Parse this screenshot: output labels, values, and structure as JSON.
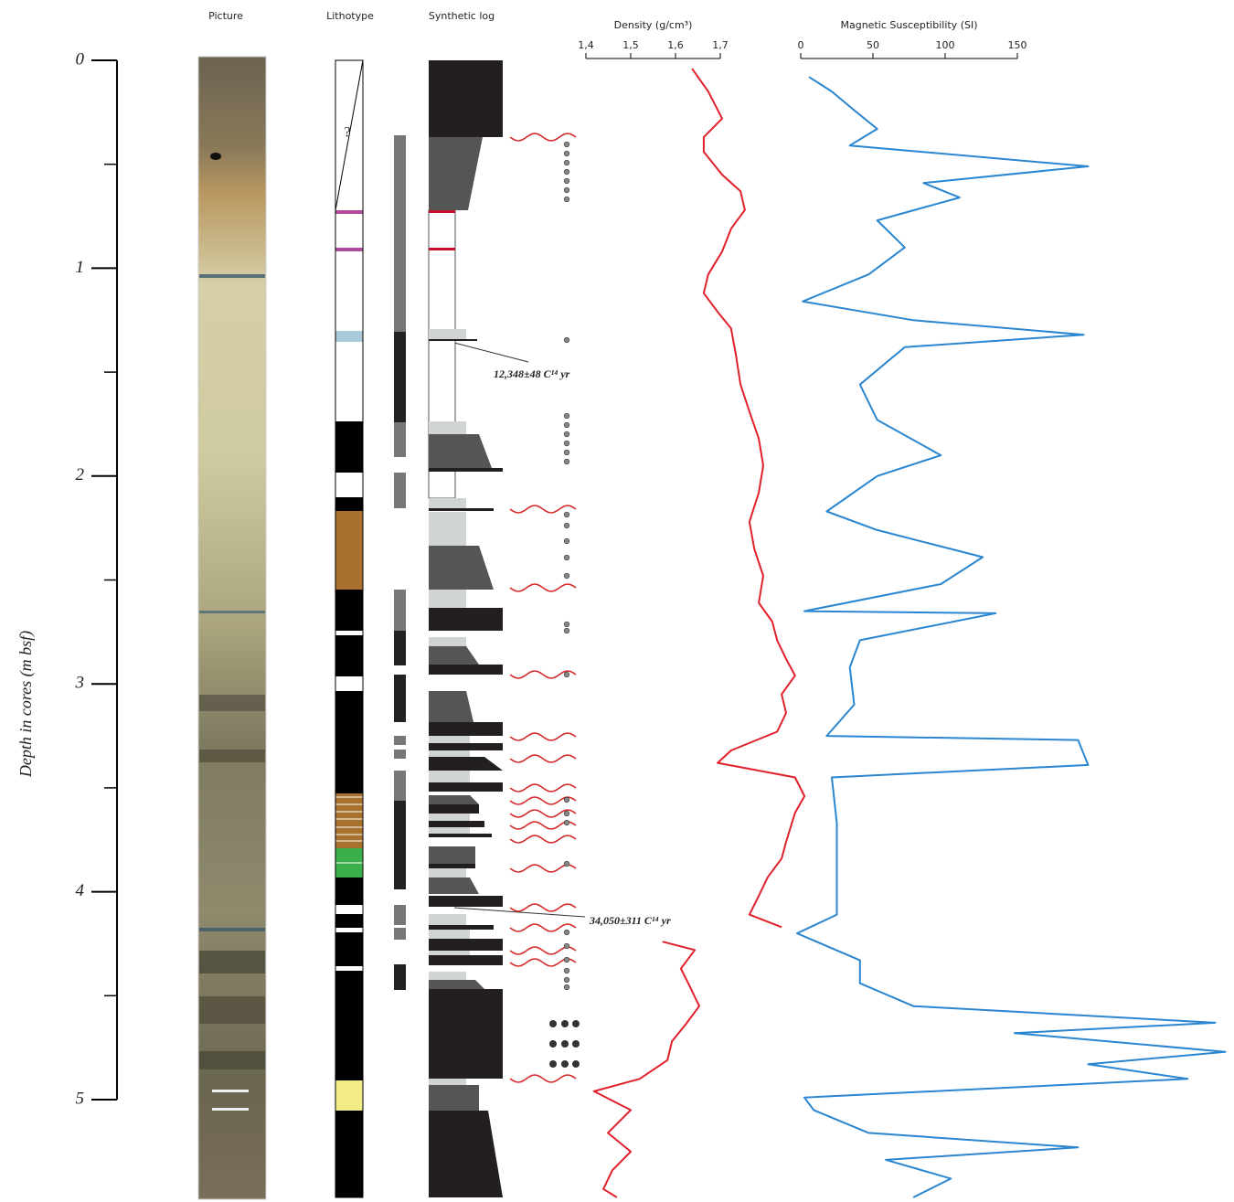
{
  "columns": {
    "picture": "Picture",
    "lithotype": "Lithotype",
    "synthetic_log": "Synthetic log",
    "unknown_mark": "?"
  },
  "annotations": [
    "12,348±48 C¹⁴ yr",
    "34,050±311 C¹⁴ yr"
  ],
  "depth_axis": {
    "label": "Depth in cores (m bsf)",
    "ylim": [
      0,
      5
    ],
    "yticks": [
      0,
      1,
      2,
      3,
      4,
      5
    ],
    "minor_ticks": [
      0.5,
      1.5,
      2.5,
      3.5,
      4.5
    ]
  },
  "chart_data": [
    {
      "type": "line",
      "title": "Density (g/cm³)",
      "color": "#e0202a",
      "xlim": [
        1.4,
        1.7
      ],
      "xticks": [
        {
          "value": 1.4,
          "label": "1,4"
        },
        {
          "value": 1.5,
          "label": "1,5"
        },
        {
          "value": 1.6,
          "label": "1,6"
        },
        {
          "value": 1.7,
          "label": "1,7"
        }
      ],
      "depth": [
        0.04,
        0.15,
        0.28,
        0.37,
        0.44,
        0.55,
        0.63,
        0.72,
        0.81,
        0.92,
        1.03,
        1.12,
        1.21,
        1.29,
        1.42,
        1.56,
        1.69,
        1.82,
        1.95,
        2.08,
        2.22,
        2.35,
        2.48,
        2.61,
        2.7,
        2.79,
        2.88,
        2.96,
        3.05,
        3.14,
        3.23,
        3.32,
        3.38,
        3.45,
        3.54,
        3.62,
        3.76,
        3.84,
        3.93,
        4.02,
        4.11,
        4.17,
        4.2,
        4.24,
        4.28,
        4.37,
        4.46,
        4.55,
        4.64,
        4.72,
        4.81,
        4.9,
        4.96,
        5.05,
        5.16,
        5.25,
        5.34,
        5.43,
        5.47
      ],
      "values": [
        1.637,
        1.673,
        1.704,
        1.663,
        1.663,
        1.704,
        1.745,
        1.755,
        1.724,
        1.704,
        1.673,
        1.663,
        1.694,
        1.724,
        1.735,
        1.745,
        1.765,
        1.786,
        1.796,
        1.786,
        1.765,
        1.776,
        1.796,
        1.786,
        1.816,
        1.827,
        1.847,
        1.867,
        1.837,
        1.847,
        1.827,
        1.724,
        1.694,
        1.867,
        1.888,
        1.867,
        1.847,
        1.837,
        1.806,
        1.786,
        1.765,
        1.837,
        null,
        1.571,
        1.643,
        1.612,
        1.633,
        1.653,
        1.622,
        1.592,
        1.582,
        1.52,
        1.418,
        1.5,
        1.449,
        1.5,
        1.459,
        1.439,
        1.469
      ]
    },
    {
      "type": "line",
      "title": "Magnetic Susceptibility (SI)",
      "color": "#2a86d0",
      "xlim": [
        0,
        150
      ],
      "xticks": [
        0,
        50,
        100,
        150
      ],
      "depth": [
        0.08,
        0.15,
        0.24,
        0.33,
        0.41,
        0.51,
        0.59,
        0.66,
        0.77,
        0.9,
        1.03,
        1.16,
        1.25,
        1.32,
        1.38,
        1.56,
        1.73,
        1.9,
        2.0,
        2.17,
        2.26,
        2.39,
        2.52,
        2.65,
        2.66,
        2.79,
        2.92,
        3.1,
        3.25,
        3.27,
        3.39,
        3.45,
        3.67,
        3.89,
        4.11,
        4.2,
        4.33,
        4.44,
        4.55,
        4.63,
        4.68,
        4.77,
        4.83,
        4.9,
        4.99,
        5.05,
        5.16,
        5.23,
        5.29,
        5.38,
        5.47
      ],
      "values": [
        5.7,
        21.5,
        37,
        53,
        34,
        199,
        85,
        110,
        53,
        72,
        47,
        1.3,
        78,
        196,
        72,
        41,
        53,
        97,
        53,
        18,
        53,
        126,
        97,
        2.5,
        135,
        41,
        34,
        37,
        18,
        192,
        199,
        21.5,
        25,
        25,
        25,
        -2.5,
        41,
        41,
        78,
        287,
        148,
        294,
        199,
        268,
        2.5,
        9,
        47,
        192,
        59,
        104,
        78
      ]
    }
  ]
}
